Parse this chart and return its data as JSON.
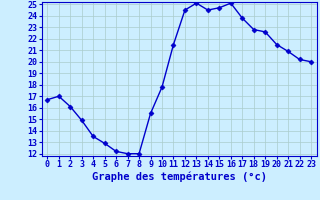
{
  "hours": [
    0,
    1,
    2,
    3,
    4,
    5,
    6,
    7,
    8,
    9,
    10,
    11,
    12,
    13,
    14,
    15,
    16,
    17,
    18,
    19,
    20,
    21,
    22,
    23
  ],
  "temps": [
    16.7,
    17.0,
    16.1,
    14.9,
    13.5,
    12.9,
    12.2,
    12.0,
    12.0,
    15.5,
    17.8,
    21.5,
    24.5,
    25.1,
    24.5,
    24.7,
    25.1,
    23.8,
    22.8,
    22.6,
    21.5,
    20.9,
    20.2,
    20.0
  ],
  "line_color": "#0000cc",
  "marker": "D",
  "marker_size": 2.5,
  "bg_color": "#cceeff",
  "grid_color": "#aacccc",
  "xlabel": "Graphe des températures (°c)",
  "tick_color": "#0000cc",
  "ylim": [
    12,
    25
  ],
  "yticks": [
    12,
    13,
    14,
    15,
    16,
    17,
    18,
    19,
    20,
    21,
    22,
    23,
    24,
    25
  ],
  "xlim": [
    -0.5,
    23.5
  ],
  "xticks": [
    0,
    1,
    2,
    3,
    4,
    5,
    6,
    7,
    8,
    9,
    10,
    11,
    12,
    13,
    14,
    15,
    16,
    17,
    18,
    19,
    20,
    21,
    22,
    23
  ],
  "tick_fontsize": 6,
  "xlabel_fontsize": 7.5
}
